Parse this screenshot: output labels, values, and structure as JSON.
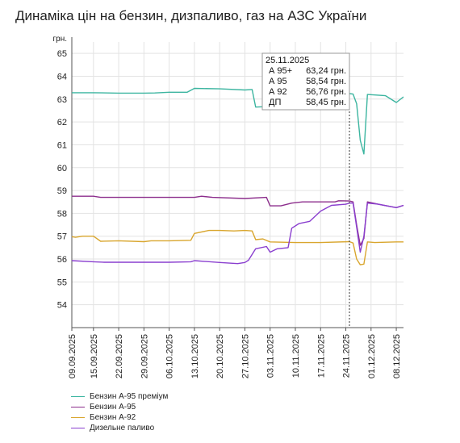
{
  "title": "Динаміка цін на бензин, дизпаливо, газ на АЗС України",
  "chart_data": {
    "type": "line",
    "ylabel": "грн.",
    "ylim": [
      53,
      65.5
    ],
    "yticks": [
      54,
      55,
      56,
      57,
      58,
      59,
      60,
      61,
      62,
      63,
      64,
      65
    ],
    "x_ticks": [
      "09.09.2025",
      "15.09.2025",
      "22.09.2025",
      "29.09.2025",
      "06.10.2025",
      "13.10.2025",
      "20.10.2025",
      "27.10.2025",
      "03.11.2025",
      "10.11.2025",
      "17.11.2025",
      "24.11.2025",
      "01.12.2025",
      "08.12.2025"
    ],
    "x_start": "09.09.2025",
    "x_end": "10.12.2025",
    "grid": true,
    "legend_position": "bottom-left",
    "series": [
      {
        "name": "Бензин А-95 преміум",
        "color": "#3cb5a0",
        "points": [
          [
            "09.09.2025",
            63.28
          ],
          [
            "15.09.2025",
            63.28
          ],
          [
            "22.09.2025",
            63.26
          ],
          [
            "29.09.2025",
            63.26
          ],
          [
            "02.10.2025",
            63.27
          ],
          [
            "06.10.2025",
            63.3
          ],
          [
            "11.10.2025",
            63.3
          ],
          [
            "13.10.2025",
            63.47
          ],
          [
            "20.10.2025",
            63.45
          ],
          [
            "27.10.2025",
            63.4
          ],
          [
            "29.10.2025",
            63.42
          ],
          [
            "30.10.2025",
            62.65
          ],
          [
            "03.11.2025",
            62.68
          ],
          [
            "10.11.2025",
            62.65
          ],
          [
            "17.11.2025",
            62.6
          ],
          [
            "21.11.2025",
            62.6
          ],
          [
            "22.11.2025",
            63.2
          ],
          [
            "25.11.2025",
            63.24
          ],
          [
            "26.11.2025",
            63.22
          ],
          [
            "27.11.2025",
            62.8
          ],
          [
            "28.11.2025",
            61.2
          ],
          [
            "29.11.2025",
            60.6
          ],
          [
            "30.11.2025",
            63.2
          ],
          [
            "05.12.2025",
            63.15
          ],
          [
            "08.12.2025",
            62.85
          ],
          [
            "10.12.2025",
            63.1
          ]
        ]
      },
      {
        "name": "Бензин А-95",
        "color": "#8c2e8c",
        "points": [
          [
            "09.09.2025",
            58.75
          ],
          [
            "15.09.2025",
            58.75
          ],
          [
            "17.09.2025",
            58.7
          ],
          [
            "13.10.2025",
            58.7
          ],
          [
            "15.10.2025",
            58.75
          ],
          [
            "18.10.2025",
            58.7
          ],
          [
            "27.10.2025",
            58.65
          ],
          [
            "02.11.2025",
            58.7
          ],
          [
            "03.11.2025",
            58.33
          ],
          [
            "06.11.2025",
            58.33
          ],
          [
            "09.11.2025",
            58.45
          ],
          [
            "12.11.2025",
            58.5
          ],
          [
            "17.11.2025",
            58.5
          ],
          [
            "21.11.2025",
            58.5
          ],
          [
            "22.11.2025",
            58.55
          ],
          [
            "25.11.2025",
            58.54
          ],
          [
            "26.11.2025",
            58.5
          ],
          [
            "27.11.2025",
            57.5
          ],
          [
            "28.11.2025",
            56.6
          ],
          [
            "29.11.2025",
            56.9
          ],
          [
            "30.11.2025",
            58.5
          ],
          [
            "03.12.2025",
            58.4
          ],
          [
            "08.12.2025",
            58.25
          ],
          [
            "10.12.2025",
            58.35
          ]
        ]
      },
      {
        "name": "Бензин А-92",
        "color": "#d9a62e",
        "points": [
          [
            "09.09.2025",
            56.98
          ],
          [
            "10.09.2025",
            56.95
          ],
          [
            "12.09.2025",
            57.0
          ],
          [
            "15.09.2025",
            57.0
          ],
          [
            "17.09.2025",
            56.78
          ],
          [
            "22.09.2025",
            56.8
          ],
          [
            "29.09.2025",
            56.76
          ],
          [
            "01.10.2025",
            56.8
          ],
          [
            "06.10.2025",
            56.8
          ],
          [
            "12.10.2025",
            56.82
          ],
          [
            "13.10.2025",
            57.12
          ],
          [
            "17.10.2025",
            57.25
          ],
          [
            "20.10.2025",
            57.25
          ],
          [
            "24.10.2025",
            57.23
          ],
          [
            "27.10.2025",
            57.25
          ],
          [
            "29.10.2025",
            57.23
          ],
          [
            "30.10.2025",
            56.85
          ],
          [
            "01.11.2025",
            56.88
          ],
          [
            "03.11.2025",
            56.75
          ],
          [
            "10.11.2025",
            56.72
          ],
          [
            "17.11.2025",
            56.72
          ],
          [
            "25.11.2025",
            56.76
          ],
          [
            "26.11.2025",
            56.7
          ],
          [
            "27.11.2025",
            56.0
          ],
          [
            "28.11.2025",
            55.75
          ],
          [
            "29.11.2025",
            55.78
          ],
          [
            "30.11.2025",
            56.75
          ],
          [
            "02.12.2025",
            56.72
          ],
          [
            "08.12.2025",
            56.75
          ],
          [
            "10.12.2025",
            56.75
          ]
        ]
      },
      {
        "name": "Дизельне паливо",
        "color": "#8a3fcf",
        "points": [
          [
            "09.09.2025",
            55.93
          ],
          [
            "15.09.2025",
            55.88
          ],
          [
            "18.09.2025",
            55.86
          ],
          [
            "22.09.2025",
            55.86
          ],
          [
            "06.10.2025",
            55.86
          ],
          [
            "12.10.2025",
            55.88
          ],
          [
            "13.10.2025",
            55.93
          ],
          [
            "20.10.2025",
            55.85
          ],
          [
            "25.10.2025",
            55.8
          ],
          [
            "27.10.2025",
            55.85
          ],
          [
            "28.10.2025",
            55.95
          ],
          [
            "30.10.2025",
            56.45
          ],
          [
            "02.11.2025",
            56.55
          ],
          [
            "03.11.2025",
            56.3
          ],
          [
            "05.11.2025",
            56.45
          ],
          [
            "08.11.2025",
            56.5
          ],
          [
            "09.11.2025",
            57.35
          ],
          [
            "11.11.2025",
            57.55
          ],
          [
            "14.11.2025",
            57.65
          ],
          [
            "17.11.2025",
            58.1
          ],
          [
            "20.11.2025",
            58.35
          ],
          [
            "24.11.2025",
            58.4
          ],
          [
            "25.11.2025",
            58.45
          ],
          [
            "26.11.2025",
            58.45
          ],
          [
            "27.11.2025",
            57.4
          ],
          [
            "28.11.2025",
            56.3
          ],
          [
            "29.11.2025",
            57.0
          ],
          [
            "30.11.2025",
            58.45
          ],
          [
            "03.12.2025",
            58.4
          ],
          [
            "08.12.2025",
            58.25
          ],
          [
            "10.12.2025",
            58.35
          ]
        ]
      }
    ],
    "tooltip": {
      "date": "25.11.2025",
      "rows": [
        {
          "label": "А 95+",
          "value": "63,24 грн."
        },
        {
          "label": "А 95",
          "value": "58,54 грн."
        },
        {
          "label": "А 92",
          "value": "56,76 грн."
        },
        {
          "label": "ДП",
          "value": "58,45 грн."
        }
      ]
    }
  }
}
